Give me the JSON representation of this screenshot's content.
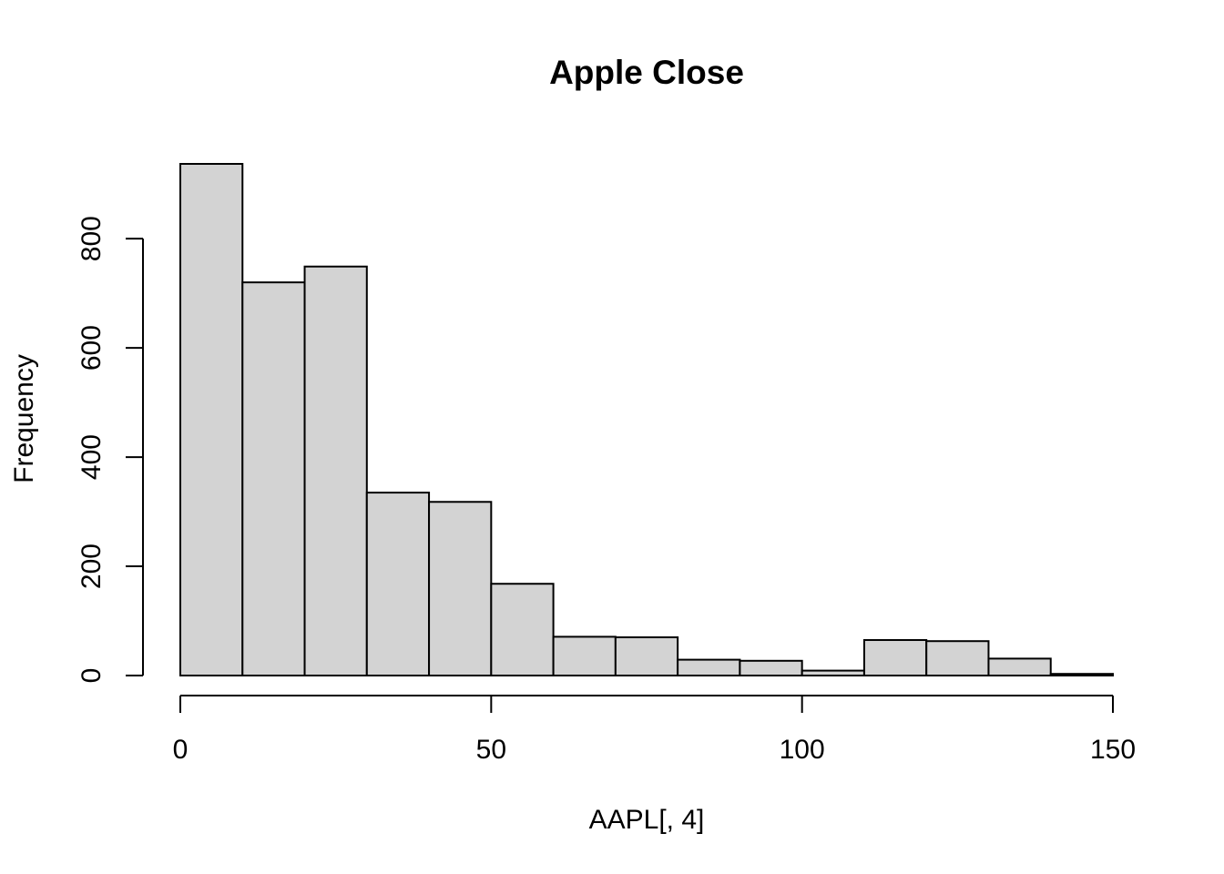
{
  "chart_data": {
    "type": "bar",
    "title": "Apple Close",
    "xlabel": "AAPL[, 4]",
    "ylabel": "Frequency",
    "bins": [
      {
        "start": 0,
        "end": 10,
        "count": 937
      },
      {
        "start": 10,
        "end": 20,
        "count": 720
      },
      {
        "start": 20,
        "end": 30,
        "count": 749
      },
      {
        "start": 30,
        "end": 40,
        "count": 335
      },
      {
        "start": 40,
        "end": 50,
        "count": 318
      },
      {
        "start": 50,
        "end": 60,
        "count": 168
      },
      {
        "start": 60,
        "end": 70,
        "count": 71
      },
      {
        "start": 70,
        "end": 80,
        "count": 70
      },
      {
        "start": 80,
        "end": 90,
        "count": 29
      },
      {
        "start": 90,
        "end": 100,
        "count": 27
      },
      {
        "start": 100,
        "end": 110,
        "count": 9
      },
      {
        "start": 110,
        "end": 120,
        "count": 65
      },
      {
        "start": 120,
        "end": 130,
        "count": 63
      },
      {
        "start": 130,
        "end": 140,
        "count": 31
      },
      {
        "start": 140,
        "end": 150,
        "count": 3
      }
    ],
    "xlim": [
      0,
      150
    ],
    "ylim": [
      0,
      937
    ],
    "x_ticks": [
      0,
      50,
      100,
      150
    ],
    "y_ticks": [
      0,
      200,
      400,
      600,
      800
    ],
    "colors": {
      "bar_fill": "#d3d3d3",
      "bar_stroke": "#000000"
    },
    "grid": false
  }
}
